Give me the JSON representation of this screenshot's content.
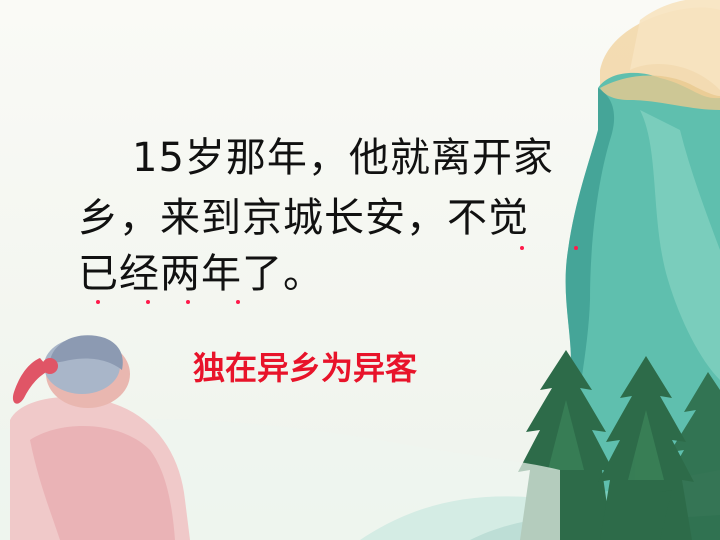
{
  "slide": {
    "text_line_1": "15岁那年，他就离开家",
    "text_line_2": "乡，来到京城长安，不觉",
    "text_line_3": "已经两年了。",
    "caption": "独在异乡为异客"
  },
  "emphasis_marks": {
    "note": "",
    "color": "#ff1a4a"
  },
  "colors": {
    "text": "#111111",
    "caption": "#e8132a",
    "cliff": "#5fbfae",
    "sky_glow": "#f2d6a6"
  }
}
